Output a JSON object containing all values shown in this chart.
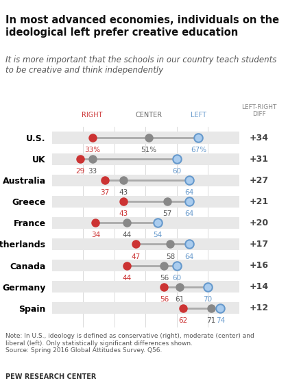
{
  "title": "In most advanced economies, individuals on the\nideological left prefer creative education",
  "subtitle": "It is more important that the schools in our country teach students\nto be creative and think independently",
  "note": "Note: In U.S., ideology is defined as conservative (right), moderate (center) and\nliberal (left). Only statistically significant differences shown.\nSource: Spring 2016 Global Attitudes Survey. Q56.",
  "source": "PEW RESEARCH CENTER",
  "countries": [
    "U.S.",
    "UK",
    "Australia",
    "Greece",
    "France",
    "Netherlands",
    "Canada",
    "Germany",
    "Spain"
  ],
  "right_vals": [
    33,
    29,
    37,
    43,
    34,
    47,
    44,
    56,
    62
  ],
  "center_vals": [
    51,
    33,
    43,
    57,
    44,
    58,
    56,
    61,
    71
  ],
  "left_vals": [
    67,
    60,
    64,
    64,
    54,
    64,
    60,
    70,
    74
  ],
  "diffs": [
    "+34",
    "+31",
    "+27",
    "+21",
    "+20",
    "+17",
    "+16",
    "+14",
    "+12"
  ],
  "right_color": "#cc3333",
  "center_color": "#888888",
  "left_color": "#6699cc",
  "left_face_color": "#aaccee",
  "line_color": "#aaaaaa",
  "bar_bg_color": "#e8e8e8",
  "diff_bg_color": "#e8e3d5",
  "xmin": 20,
  "xmax": 80
}
